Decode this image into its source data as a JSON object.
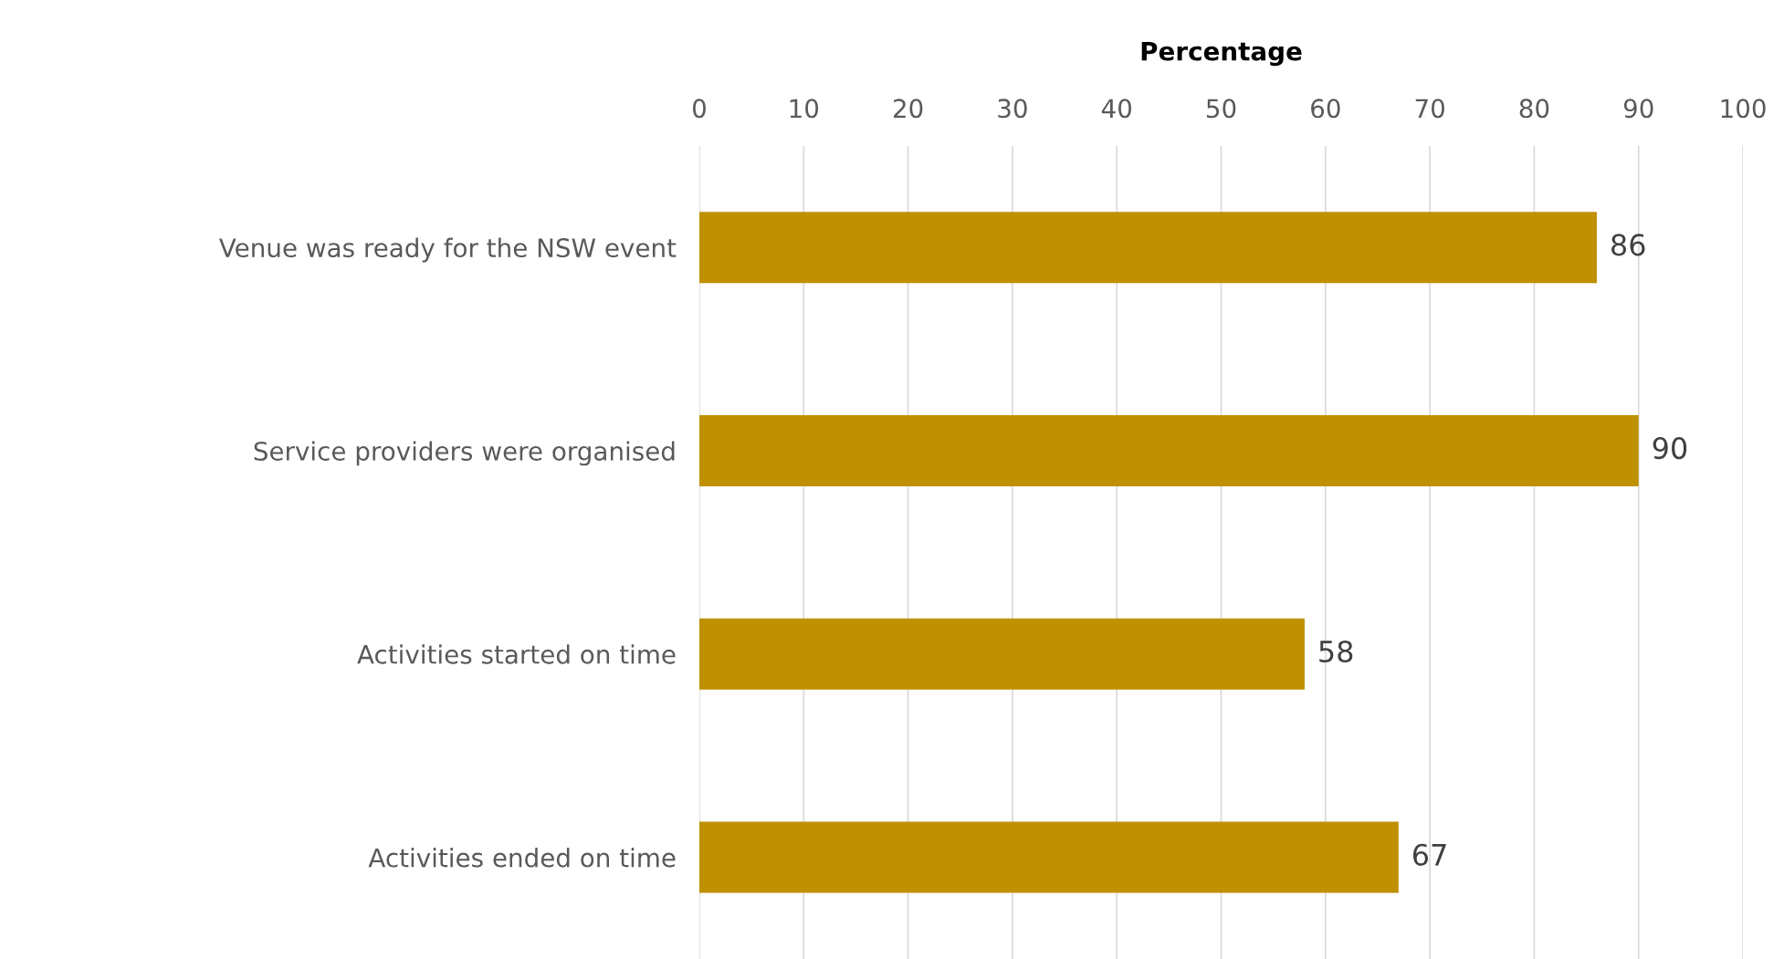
{
  "chart_data": {
    "type": "bar",
    "orientation": "horizontal",
    "xlabel": "Percentage",
    "categories": [
      "Venue was ready for the NSW event",
      "Service providers were organised",
      "Activities started on time",
      "Activities ended on time"
    ],
    "values": [
      86,
      90,
      58,
      67
    ],
    "color": "#bf9000",
    "xlim": [
      0,
      100
    ],
    "xticks": [
      0,
      10,
      20,
      30,
      40,
      50,
      60,
      70,
      80,
      90,
      100
    ],
    "grid": "x",
    "data_labels": true,
    "legend": false
  }
}
